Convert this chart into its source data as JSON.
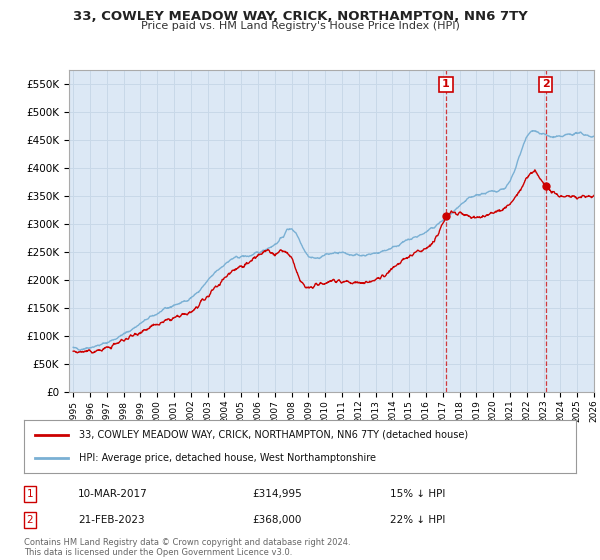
{
  "title": "33, COWLEY MEADOW WAY, CRICK, NORTHAMPTON, NN6 7TY",
  "subtitle": "Price paid vs. HM Land Registry's House Price Index (HPI)",
  "legend_label_red": "33, COWLEY MEADOW WAY, CRICK, NORTHAMPTON, NN6 7TY (detached house)",
  "legend_label_blue": "HPI: Average price, detached house, West Northamptonshire",
  "transaction1_date": "10-MAR-2017",
  "transaction1_price": "£314,995",
  "transaction1_hpi": "15% ↓ HPI",
  "transaction2_date": "21-FEB-2023",
  "transaction2_price": "£368,000",
  "transaction2_hpi": "22% ↓ HPI",
  "footer": "Contains HM Land Registry data © Crown copyright and database right 2024.\nThis data is licensed under the Open Government Licence v3.0.",
  "vline1_x": 2017.19,
  "vline2_x": 2023.13,
  "marker1_y": 314995,
  "marker2_y": 368000,
  "red_color": "#cc0000",
  "blue_color": "#7ab0d4",
  "background_color": "#ffffff",
  "plot_bg_color": "#dce8f5",
  "grid_color": "#c8d8e8",
  "ylim": [
    0,
    575000
  ],
  "xlim": [
    1994.75,
    2026.0
  ],
  "yticks": [
    0,
    50000,
    100000,
    150000,
    200000,
    250000,
    300000,
    350000,
    400000,
    450000,
    500000,
    550000
  ],
  "hpi_control_x": [
    1995,
    1995.5,
    1996,
    1996.5,
    1997,
    1997.5,
    1998,
    1998.5,
    1999,
    1999.5,
    2000,
    2000.5,
    2001,
    2001.5,
    2002,
    2002.5,
    2003,
    2003.5,
    2004,
    2004.5,
    2005,
    2005.5,
    2006,
    2006.5,
    2007,
    2007.25,
    2007.5,
    2007.75,
    2008,
    2008.25,
    2008.5,
    2008.75,
    2009,
    2009.5,
    2010,
    2010.5,
    2011,
    2011.5,
    2012,
    2012.5,
    2013,
    2013.5,
    2014,
    2014.5,
    2015,
    2015.5,
    2016,
    2016.5,
    2017,
    2017.5,
    2018,
    2018.25,
    2018.5,
    2018.75,
    2019,
    2019.5,
    2020,
    2020.25,
    2020.5,
    2020.75,
    2021,
    2021.25,
    2021.5,
    2021.75,
    2022,
    2022.25,
    2022.5,
    2022.75,
    2023,
    2023.5,
    2024,
    2024.5,
    2025,
    2025.5,
    2026
  ],
  "hpi_control_y": [
    78000,
    77000,
    80000,
    83000,
    88000,
    95000,
    103000,
    112000,
    122000,
    132000,
    140000,
    148000,
    155000,
    160000,
    168000,
    180000,
    198000,
    215000,
    228000,
    238000,
    242000,
    243000,
    248000,
    256000,
    263000,
    270000,
    278000,
    290000,
    292000,
    285000,
    270000,
    255000,
    242000,
    238000,
    245000,
    248000,
    248000,
    246000,
    244000,
    245000,
    248000,
    252000,
    258000,
    265000,
    272000,
    278000,
    285000,
    295000,
    306000,
    318000,
    330000,
    338000,
    345000,
    348000,
    352000,
    355000,
    358000,
    360000,
    362000,
    365000,
    375000,
    392000,
    415000,
    438000,
    455000,
    465000,
    468000,
    462000,
    460000,
    455000,
    455000,
    460000,
    462000,
    460000,
    455000
  ],
  "red_control_x": [
    1995,
    1995.5,
    1996,
    1996.5,
    1997,
    1997.5,
    1998,
    1998.5,
    1999,
    1999.5,
    2000,
    2000.5,
    2001,
    2001.5,
    2002,
    2002.5,
    2003,
    2003.5,
    2004,
    2004.5,
    2005,
    2005.25,
    2005.5,
    2005.75,
    2006,
    2006.25,
    2006.5,
    2006.75,
    2007,
    2007.25,
    2007.5,
    2007.75,
    2008,
    2008.25,
    2008.5,
    2008.75,
    2009,
    2009.5,
    2010,
    2010.5,
    2011,
    2011.5,
    2012,
    2012.5,
    2013,
    2013.5,
    2014,
    2014.5,
    2015,
    2015.5,
    2016,
    2016.5,
    2017.19,
    2017.5,
    2018,
    2018.5,
    2019,
    2019.5,
    2020,
    2020.5,
    2021,
    2021.5,
    2022,
    2022.25,
    2022.5,
    2023.13,
    2023.5,
    2024,
    2024.5,
    2025,
    2025.5,
    2026
  ],
  "red_control_y": [
    73000,
    71000,
    72000,
    74000,
    78000,
    85000,
    93000,
    100000,
    108000,
    114000,
    120000,
    126000,
    132000,
    136000,
    142000,
    155000,
    170000,
    188000,
    203000,
    218000,
    225000,
    228000,
    232000,
    238000,
    242000,
    248000,
    252000,
    248000,
    245000,
    250000,
    252000,
    248000,
    238000,
    220000,
    198000,
    190000,
    185000,
    190000,
    196000,
    200000,
    198000,
    196000,
    194000,
    196000,
    200000,
    208000,
    220000,
    232000,
    242000,
    250000,
    258000,
    268000,
    314995,
    320000,
    320000,
    315000,
    310000,
    315000,
    320000,
    325000,
    335000,
    355000,
    382000,
    392000,
    395000,
    368000,
    355000,
    348000,
    350000,
    348000,
    350000,
    352000
  ]
}
